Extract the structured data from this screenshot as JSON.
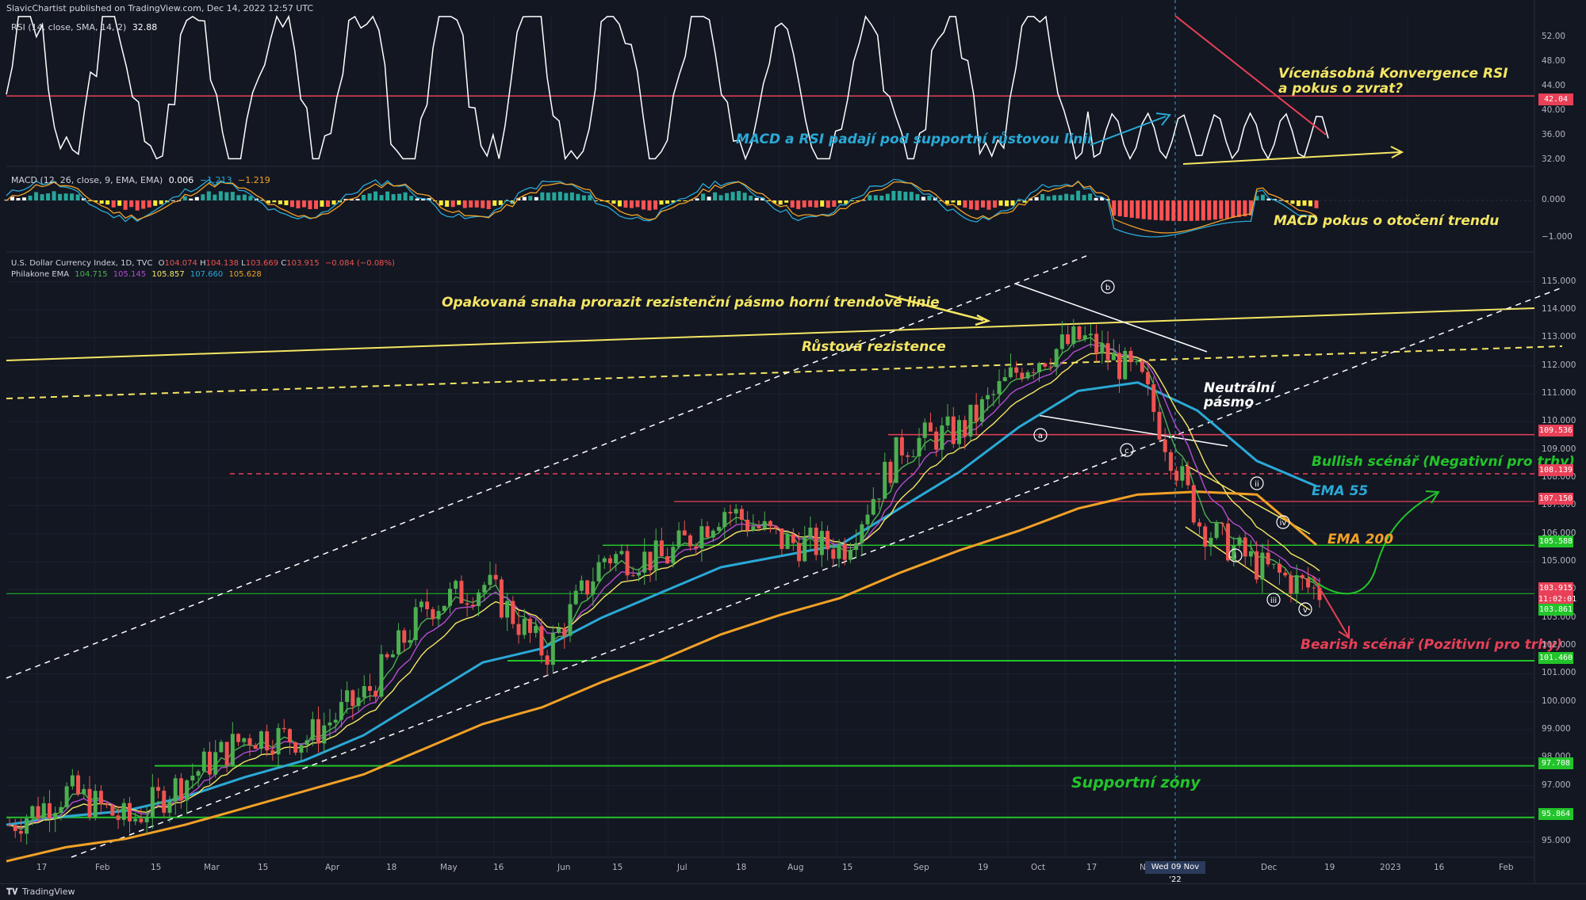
{
  "published": "SlavicChartist published on TradingView.com, Dec 14, 2022 12:57 UTC",
  "rsi_header": {
    "label": "RSI (14, close, SMA, 14, 2)",
    "value": "32.88"
  },
  "macd_header": {
    "label": "MACD (12, 26, close, 9, EMA, EMA)",
    "v1": "0.006",
    "v2": "−1.213",
    "v3": "−1.219"
  },
  "price_header": {
    "symbol": "U.S. Dollar Currency Index, 1D, TVC",
    "o_label": "O",
    "o": "104.074",
    "h_label": "H",
    "h": "104.138",
    "l_label": "L",
    "l": "103.669",
    "c_label": "C",
    "c": "103.915",
    "change": "−0.084 (−0.08%)"
  },
  "ema_header": {
    "label": "Philakone EMA",
    "e1": "104.715",
    "e2": "105.145",
    "e3": "105.857",
    "e4": "107.660",
    "e5": "105.628"
  },
  "colors": {
    "bg": "#131722",
    "up": "#4caf50",
    "down": "#ef5350",
    "ema55": "#2aa9d6",
    "ema200": "#f2a126",
    "yellow": "#f5e663",
    "green": "#22c42a",
    "red": "#e84057"
  },
  "annotations": {
    "rsi_convergence": "Vícenásobná Konvergence RSI\na pokus o zvrat?",
    "macd_rsi": "MACD a RSI padají pod supportní růstovou linii",
    "macd_trend": "MACD pokus o otočení trendu",
    "resistance_attempt": "Opakovaná snaha prorazit rezistenční pásmo horní trendové linie",
    "growth_resistance": "Růstová rezistence",
    "neutral_zone": "Neutrální\npásmo",
    "bullish": "Bullish scénář (Negativní pro trhy)",
    "ema55": "EMA 55",
    "ema200": "EMA 200",
    "bearish": "Bearish scénář (Pozitivní pro trhy)",
    "support": "Supportní zóny",
    "waves": [
      "a",
      "b",
      "c",
      "i",
      "ii",
      "iii",
      "iv",
      "v"
    ]
  },
  "rsi_axis": [
    "52.00",
    "48.00",
    "44.00",
    "40.00",
    "36.00",
    "32.00"
  ],
  "rsi_tag": "42.04",
  "macd_axis": [
    "0.000",
    "−1.000"
  ],
  "price_axis": [
    "115.000",
    "114.000",
    "113.000",
    "112.000",
    "111.000",
    "110.000",
    "109.000",
    "108.000",
    "107.000",
    "106.000",
    "105.000",
    "104.000",
    "103.000",
    "102.000",
    "101.000",
    "100.000",
    "99.000",
    "98.000",
    "97.000",
    "96.000",
    "95.000"
  ],
  "price_tags": [
    {
      "v": "109.536",
      "bg": "#e84057"
    },
    {
      "v": "108.139",
      "bg": "#e84057"
    },
    {
      "v": "107.150",
      "bg": "#e84057"
    },
    {
      "v": "105.588",
      "bg": "#22c42a"
    },
    {
      "v": "103.915",
      "bg": "#e84057"
    },
    {
      "v": "11:02:01",
      "bg": "#e84057"
    },
    {
      "v": "103.861",
      "bg": "#22c42a"
    },
    {
      "v": "101.460",
      "bg": "#22c42a"
    },
    {
      "v": "97.708",
      "bg": "#22c42a"
    },
    {
      "v": "95.864",
      "bg": "#22c42a"
    }
  ],
  "x_axis": [
    "17",
    "Feb",
    "15",
    "Mar",
    "15",
    "Apr",
    "18",
    "May",
    "16",
    "Jun",
    "15",
    "Jul",
    "18",
    "Aug",
    "15",
    "Sep",
    "19",
    "Oct",
    "17",
    "Nov",
    "Dec",
    "19",
    "2023",
    "16",
    "Feb"
  ],
  "x_cursor": "Wed 09 Nov '22",
  "brand": "TradingView",
  "chart_data": {
    "type": "line",
    "title": "",
    "x": [
      "Jan-17",
      "Feb-01",
      "Feb-15",
      "Mar-01",
      "Mar-15",
      "Apr-01",
      "Apr-18",
      "May-02",
      "May-16",
      "Jun-01",
      "Jun-15",
      "Jul-01",
      "Jul-18",
      "Aug-01",
      "Aug-15",
      "Sep-01",
      "Sep-19",
      "Oct-03",
      "Oct-17",
      "Nov-01",
      "Nov-15",
      "Dec-01",
      "Dec-14"
    ],
    "series": [
      {
        "name": "U.S. Dollar Currency Index",
        "values": [
          95.6,
          96.8,
          95.7,
          97.3,
          98.8,
          98.7,
          100.3,
          103.4,
          104.2,
          101.7,
          105.2,
          105.1,
          106.9,
          105.7,
          105.5,
          109.2,
          109.7,
          112.0,
          113.0,
          111.5,
          106.3,
          104.8,
          103.9
        ]
      },
      {
        "name": "EMA 55",
        "values": [
          95.6,
          95.9,
          96.1,
          96.6,
          97.3,
          97.9,
          98.8,
          100.1,
          101.4,
          101.9,
          103.0,
          103.9,
          104.8,
          105.2,
          105.6,
          106.9,
          108.2,
          109.8,
          111.1,
          111.4,
          110.4,
          108.6,
          107.7
        ]
      },
      {
        "name": "EMA 200",
        "values": [
          94.3,
          94.8,
          95.1,
          95.6,
          96.2,
          96.8,
          97.4,
          98.3,
          99.2,
          99.8,
          100.7,
          101.5,
          102.4,
          103.1,
          103.7,
          104.6,
          105.4,
          106.1,
          106.9,
          107.4,
          107.5,
          107.4,
          105.6
        ]
      }
    ],
    "price_levels": [
      109.536,
      108.139,
      107.15,
      105.588,
      103.861,
      101.46,
      97.708,
      95.864
    ],
    "ylim": [
      94.5,
      115.3
    ]
  }
}
